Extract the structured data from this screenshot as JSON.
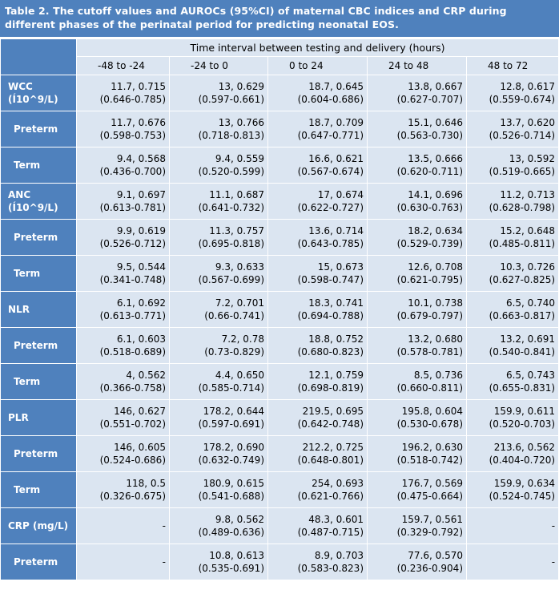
{
  "title": "Table 2. The cutoff values and AUROCs (95%CI) of maternal CBC indices and CRP during different phases of the perinatal period for predicting neonatal EOS.",
  "header": {
    "span": "Time interval between testing and delivery (hours)",
    "columns": [
      "-48 to -24",
      "-24 to 0",
      "0 to 24",
      "24 to 48",
      "48 to 72"
    ]
  },
  "rows": [
    {
      "label": [
        "WCC",
        "(Í10^9/L)"
      ],
      "type": "main",
      "cells": [
        [
          "11.7, 0.715",
          "(0.646-0.785)"
        ],
        [
          "13, 0.629",
          "(0.597-0.661)"
        ],
        [
          "18.7, 0.645",
          "(0.604-0.686)"
        ],
        [
          "13.8, 0.667",
          "(0.627-0.707)"
        ],
        [
          "12.8, 0.617",
          "(0.559-0.674)"
        ]
      ]
    },
    {
      "label": [
        "Preterm",
        ""
      ],
      "type": "sub",
      "cells": [
        [
          "11.7, 0.676",
          "(0.598-0.753)"
        ],
        [
          "13, 0.766",
          "(0.718-0.813)"
        ],
        [
          "18.7, 0.709",
          "(0.647-0.771)"
        ],
        [
          "15.1, 0.646",
          "(0.563-0.730)"
        ],
        [
          "13.7, 0.620",
          "(0.526-0.714)"
        ]
      ]
    },
    {
      "label": [
        "Term",
        ""
      ],
      "type": "sub",
      "cells": [
        [
          "9.4, 0.568",
          "(0.436-0.700)"
        ],
        [
          "9.4, 0.559",
          "(0.520-0.599)"
        ],
        [
          "16.6, 0.621",
          "(0.567-0.674)"
        ],
        [
          "13.5, 0.666",
          "(0.620-0.711)"
        ],
        [
          "13, 0.592",
          "(0.519-0.665)"
        ]
      ]
    },
    {
      "label": [
        "ANC",
        "(Í10^9/L)"
      ],
      "type": "main",
      "cells": [
        [
          "9.1, 0.697",
          "(0.613-0.781)"
        ],
        [
          "11.1, 0.687",
          "(0.641-0.732)"
        ],
        [
          "17, 0.674",
          "(0.622-0.727)"
        ],
        [
          "14.1, 0.696",
          "(0.630-0.763)"
        ],
        [
          "11.2, 0.713",
          "(0.628-0.798)"
        ]
      ]
    },
    {
      "label": [
        "Preterm",
        ""
      ],
      "type": "sub",
      "cells": [
        [
          "9.9, 0.619",
          "(0.526-0.712)"
        ],
        [
          "11.3, 0.757",
          "(0.695-0.818)"
        ],
        [
          "13.6, 0.714",
          "(0.643-0.785)"
        ],
        [
          "18.2, 0.634",
          "(0.529-0.739)"
        ],
        [
          "15.2, 0.648",
          "(0.485-0.811)"
        ]
      ]
    },
    {
      "label": [
        "Term",
        ""
      ],
      "type": "sub",
      "cells": [
        [
          "9.5, 0.544",
          "(0.341-0.748)"
        ],
        [
          "9.3, 0.633",
          "(0.567-0.699)"
        ],
        [
          "15, 0.673",
          "(0.598-0.747)"
        ],
        [
          "12.6, 0.708",
          "(0.621-0.795)"
        ],
        [
          "10.3, 0.726",
          "(0.627-0.825)"
        ]
      ]
    },
    {
      "label": [
        "NLR",
        ""
      ],
      "type": "main",
      "cells": [
        [
          "6.1, 0.692",
          "(0.613-0.771)"
        ],
        [
          "7.2, 0.701",
          "(0.66-0.741)"
        ],
        [
          "18.3, 0.741",
          "(0.694-0.788)"
        ],
        [
          "10.1, 0.738",
          "(0.679-0.797)"
        ],
        [
          "6.5, 0.740",
          "(0.663-0.817)"
        ]
      ]
    },
    {
      "label": [
        "Preterm",
        ""
      ],
      "type": "sub",
      "cells": [
        [
          "6.1, 0.603",
          "(0.518-0.689)"
        ],
        [
          "7.2, 0.78",
          "(0.73-0.829)"
        ],
        [
          "18.8, 0.752",
          "(0.680-0.823)"
        ],
        [
          "13.2, 0.680",
          "(0.578-0.781)"
        ],
        [
          "13.2, 0.691",
          "(0.540-0.841)"
        ]
      ]
    },
    {
      "label": [
        "Term",
        ""
      ],
      "type": "sub",
      "cells": [
        [
          "4, 0.562",
          "(0.366-0.758)"
        ],
        [
          "4.4, 0.650",
          "(0.585-0.714)"
        ],
        [
          "12.1, 0.759",
          "(0.698-0.819)"
        ],
        [
          "8.5, 0.736",
          "(0.660-0.811)"
        ],
        [
          "6.5, 0.743",
          "(0.655-0.831)"
        ]
      ]
    },
    {
      "label": [
        "PLR",
        ""
      ],
      "type": "main",
      "cells": [
        [
          "146, 0.627",
          "(0.551-0.702)"
        ],
        [
          "178.2, 0.644",
          "(0.597-0.691)"
        ],
        [
          "219.5, 0.695",
          "(0.642-0.748)"
        ],
        [
          "195.8, 0.604",
          "(0.530-0.678)"
        ],
        [
          "159.9, 0.611",
          "(0.520-0.703)"
        ]
      ]
    },
    {
      "label": [
        "Preterm",
        ""
      ],
      "type": "sub",
      "cells": [
        [
          "146, 0.605",
          "(0.524-0.686)"
        ],
        [
          "178.2, 0.690",
          "(0.632-0.749)"
        ],
        [
          "212.2, 0.725",
          "(0.648-0.801)"
        ],
        [
          "196.2, 0.630",
          "(0.518-0.742)"
        ],
        [
          "213.6, 0.562",
          "(0.404-0.720)"
        ]
      ]
    },
    {
      "label": [
        "Term",
        ""
      ],
      "type": "sub",
      "cells": [
        [
          "118, 0.5",
          "(0.326-0.675)"
        ],
        [
          "180.9, 0.615",
          "(0.541-0.688)"
        ],
        [
          "254, 0.693",
          "(0.621-0.766)"
        ],
        [
          "176.7, 0.569",
          "(0.475-0.664)"
        ],
        [
          "159.9, 0.634",
          "(0.524-0.745)"
        ]
      ]
    },
    {
      "label": [
        "CRP (mg/L)",
        ""
      ],
      "type": "main",
      "cells": [
        [
          "-",
          ""
        ],
        [
          "9.8, 0.562",
          "(0.489-0.636)"
        ],
        [
          "48.3, 0.601",
          "(0.487-0.715)"
        ],
        [
          "159.7, 0.561",
          "(0.329-0.792)"
        ],
        [
          "-",
          ""
        ]
      ]
    },
    {
      "label": [
        "Preterm",
        ""
      ],
      "type": "sub",
      "cells": [
        [
          "-",
          ""
        ],
        [
          "10.8, 0.613",
          "(0.535-0.691)"
        ],
        [
          "8.9, 0.703",
          "(0.583-0.823)"
        ],
        [
          "77.6, 0.570",
          "(0.236-0.904)"
        ],
        [
          "-",
          ""
        ]
      ]
    }
  ]
}
